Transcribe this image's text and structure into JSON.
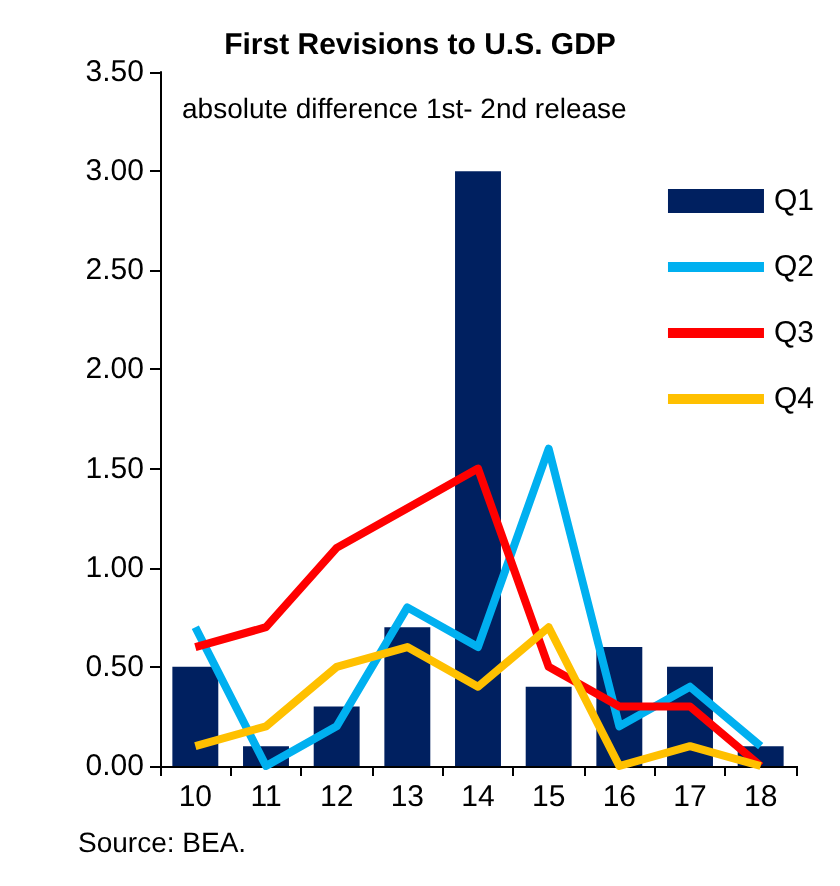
{
  "chart_data": {
    "type": "bar",
    "title": "First Revisions to U.S. GDP",
    "subtitle": "absolute difference 1st- 2nd release",
    "categories": [
      "10",
      "11",
      "12",
      "13",
      "14",
      "15",
      "16",
      "17",
      "18"
    ],
    "series": [
      {
        "name": "Q1",
        "color": "#002060",
        "values": [
          0.5,
          0.1,
          0.3,
          0.7,
          3.0,
          0.4,
          0.6,
          0.5,
          0.1
        ]
      },
      {
        "name": "Q2",
        "type": "line",
        "color": "#00b0f0",
        "values": [
          0.7,
          0.0,
          0.2,
          0.8,
          0.6,
          1.6,
          0.2,
          0.4,
          0.1
        ]
      },
      {
        "name": "Q3",
        "type": "line",
        "color": "#ff0000",
        "values": [
          0.6,
          0.7,
          1.1,
          1.3,
          1.5,
          0.5,
          0.3,
          0.3,
          0.0
        ]
      },
      {
        "name": "Q4",
        "type": "line",
        "color": "#ffc000",
        "values": [
          0.1,
          0.2,
          0.5,
          0.6,
          0.4,
          0.7,
          0.0,
          0.1,
          0.0
        ]
      }
    ],
    "ylim": [
      0,
      3.5
    ],
    "yticks": [
      {
        "value": 0,
        "label": "0.00"
      },
      {
        "value": 0.5,
        "label": "0.50"
      },
      {
        "value": 1,
        "label": "1.00"
      },
      {
        "value": 1.5,
        "label": "1.50"
      },
      {
        "value": 2,
        "label": "2.00"
      },
      {
        "value": 2.5,
        "label": "2.50"
      },
      {
        "value": 3,
        "label": "3.00"
      },
      {
        "value": 3.5,
        "label": "3.50"
      }
    ],
    "grid": false,
    "legend": "right",
    "marker": "none",
    "line_style": "solid",
    "annotations": [
      "Source: BEA."
    ]
  }
}
